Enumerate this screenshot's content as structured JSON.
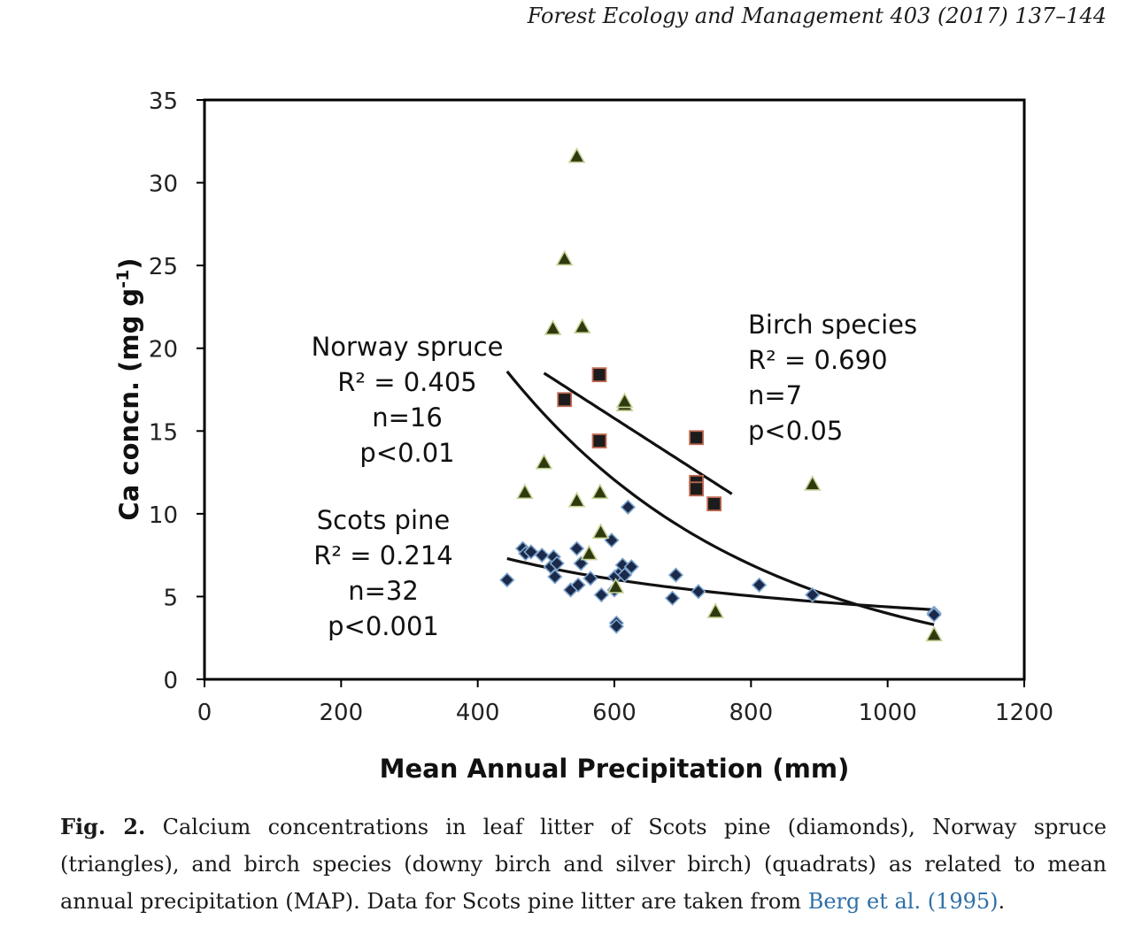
{
  "header": {
    "journal": "Forest Ecology and Management 403 (2017) 137–144"
  },
  "chart_data": {
    "type": "scatter",
    "xlabel": "Mean Annual Precipitation (mm)",
    "ylabel": "Ca concn. (mg g-1)",
    "xlim": [
      0,
      1200
    ],
    "ylim": [
      0,
      35
    ],
    "xticks": [
      0,
      200,
      400,
      600,
      800,
      1000,
      1200
    ],
    "yticks": [
      0,
      5,
      10,
      15,
      20,
      25,
      30,
      35
    ],
    "grid": false,
    "series": [
      {
        "marker": "diamond",
        "color": "#1b2a4a",
        "points": [
          [
            443,
            6.0
          ],
          [
            466,
            7.9
          ],
          [
            470,
            7.6
          ],
          [
            478,
            7.7
          ],
          [
            494,
            7.5
          ],
          [
            507,
            6.8
          ],
          [
            511,
            7.4
          ],
          [
            513,
            6.2
          ],
          [
            516,
            7.0
          ],
          [
            536,
            5.4
          ],
          [
            545,
            7.9
          ],
          [
            547,
            5.7
          ],
          [
            551,
            7.0
          ],
          [
            565,
            6.1
          ],
          [
            581,
            5.1
          ],
          [
            596,
            8.4
          ],
          [
            600,
            5.4
          ],
          [
            601,
            6.2
          ],
          [
            603,
            3.4
          ],
          [
            603,
            3.2
          ],
          [
            610,
            6.5
          ],
          [
            612,
            6.9
          ],
          [
            615,
            6.3
          ],
          [
            620,
            10.4
          ],
          [
            625,
            6.8
          ],
          [
            685,
            4.9
          ],
          [
            690,
            6.3
          ],
          [
            723,
            5.3
          ],
          [
            812,
            5.7
          ],
          [
            890,
            5.1
          ],
          [
            1068,
            4.0
          ],
          [
            1068,
            3.9
          ]
        ],
        "trend": {
          "type": "power",
          "from": 443,
          "to": 1068,
          "y_start": 7.3,
          "y_end": 4.2
        },
        "label": [
          "Scots pine",
          "R² = 0.214",
          "n=32",
          "p<0.001"
        ]
      },
      {
        "marker": "triangle",
        "color": "#2e3a0e",
        "points": [
          [
            545,
            31.6
          ],
          [
            527,
            25.4
          ],
          [
            510,
            21.2
          ],
          [
            553,
            21.3
          ],
          [
            497,
            13.1
          ],
          [
            469,
            11.3
          ],
          [
            545,
            10.8
          ],
          [
            579,
            11.3
          ],
          [
            580,
            8.9
          ],
          [
            563,
            7.6
          ],
          [
            602,
            5.6
          ],
          [
            615,
            16.6
          ],
          [
            615,
            16.8
          ],
          [
            748,
            4.1
          ],
          [
            890,
            11.8
          ],
          [
            1068,
            2.7
          ]
        ],
        "trend": {
          "type": "exponential",
          "from": 443,
          "to": 1068,
          "y_start": 18.6,
          "y_end": 3.3
        },
        "label": [
          "Norway spruce",
          "R² = 0.405",
          "n=16",
          "p<0.01"
        ]
      },
      {
        "marker": "square",
        "color": "#1c1c1c",
        "points": [
          [
            527,
            16.9
          ],
          [
            578,
            18.4
          ],
          [
            578,
            14.4
          ],
          [
            720,
            14.6
          ],
          [
            720,
            11.9
          ],
          [
            720,
            11.5
          ],
          [
            746,
            10.6
          ]
        ],
        "trend": {
          "type": "linear",
          "from": 497,
          "to": 772,
          "y_start": 18.5,
          "y_end": 11.2
        },
        "label": [
          "Birch species",
          "R² = 0.690",
          " n=7",
          "p<0.05"
        ]
      }
    ]
  },
  "caption": {
    "fig_label": "Fig. 2.",
    "text": " Calcium concentrations in leaf litter of Scots pine (diamonds), Norway spruce (triangles), and birch species (downy birch and silver birch) (quadrats) as related to mean annual precipitation (MAP). Data for Scots pine litter are taken from ",
    "ref": "Berg et al. (1995)",
    "end": "."
  }
}
